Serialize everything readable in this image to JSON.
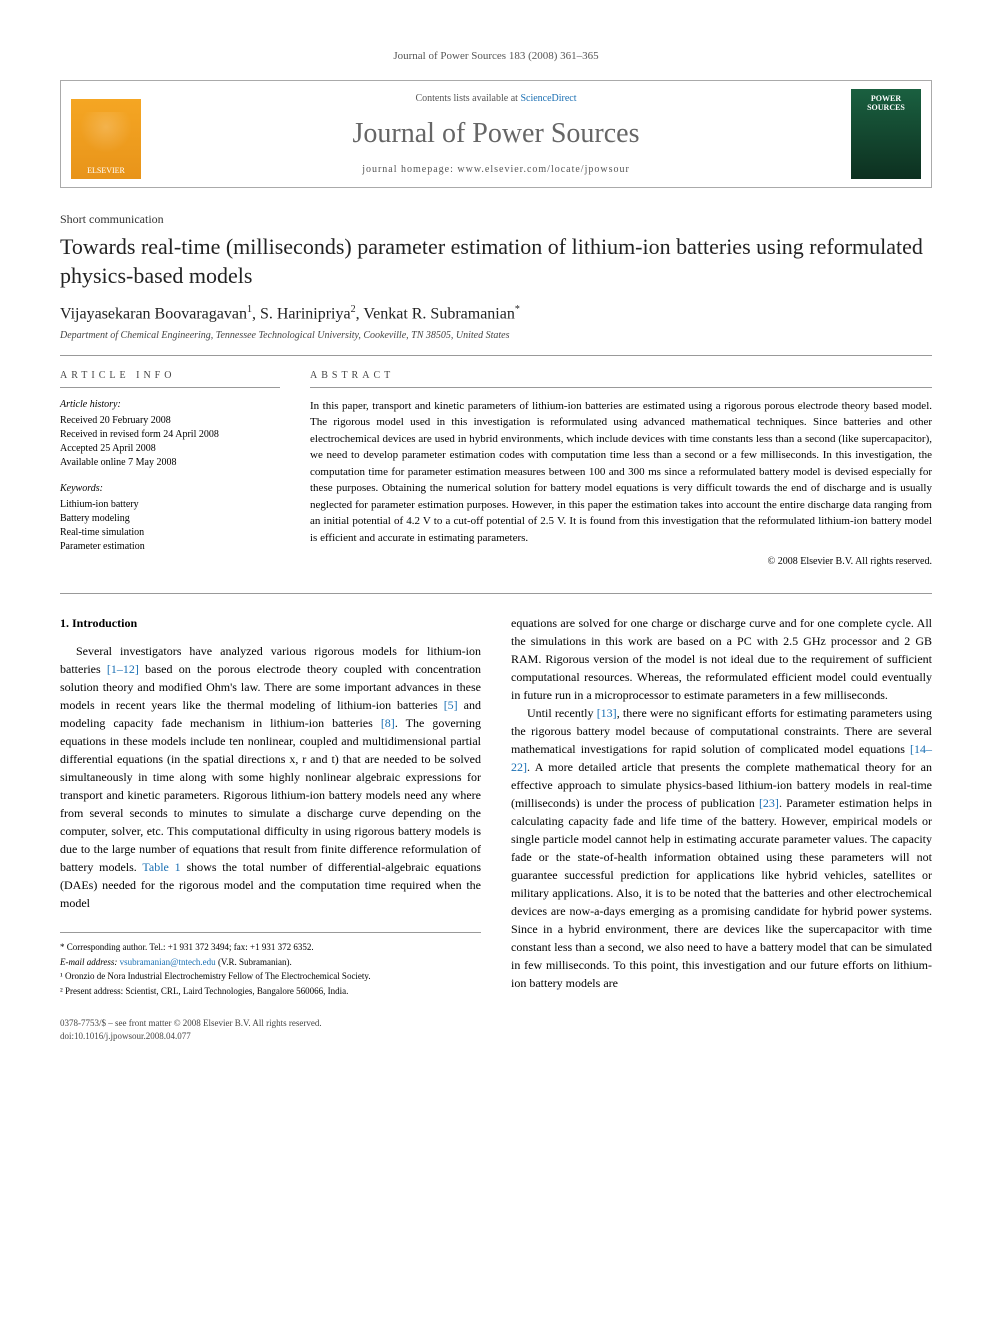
{
  "journal_ref": "Journal of Power Sources 183 (2008) 361–365",
  "header": {
    "contents_prefix": "Contents lists available at ",
    "contents_link": "ScienceDirect",
    "journal_name": "Journal of Power Sources",
    "homepage": "journal homepage: www.elsevier.com/locate/jpowsour",
    "publisher_logo": "ELSEVIER",
    "cover_text": "POWER SOURCES"
  },
  "article": {
    "type": "Short communication",
    "title": "Towards real-time (milliseconds) parameter estimation of lithium-ion batteries using reformulated physics-based models",
    "authors_html": "Vijayasekaran Boovaragavan¹, S. Harinipriya², Venkat R. Subramanian*",
    "author1": "Vijayasekaran Boovaragavan",
    "author1_sup": "1",
    "author2": "S. Harinipriya",
    "author2_sup": "2",
    "author3": "Venkat R. Subramanian",
    "author3_sup": "*",
    "affiliation": "Department of Chemical Engineering, Tennessee Technological University, Cookeville, TN 38505, United States"
  },
  "info": {
    "heading": "ARTICLE INFO",
    "history_label": "Article history:",
    "received": "Received 20 February 2008",
    "revised": "Received in revised form 24 April 2008",
    "accepted": "Accepted 25 April 2008",
    "online": "Available online 7 May 2008",
    "keywords_label": "Keywords:",
    "kw1": "Lithium-ion battery",
    "kw2": "Battery modeling",
    "kw3": "Real-time simulation",
    "kw4": "Parameter estimation"
  },
  "abstract": {
    "heading": "ABSTRACT",
    "text": "In this paper, transport and kinetic parameters of lithium-ion batteries are estimated using a rigorous porous electrode theory based model. The rigorous model used in this investigation is reformulated using advanced mathematical techniques. Since batteries and other electrochemical devices are used in hybrid environments, which include devices with time constants less than a second (like supercapacitor), we need to develop parameter estimation codes with computation time less than a second or a few milliseconds. In this investigation, the computation time for parameter estimation measures between 100 and 300 ms since a reformulated battery model is devised especially for these purposes. Obtaining the numerical solution for battery model equations is very difficult towards the end of discharge and is usually neglected for parameter estimation purposes. However, in this paper the estimation takes into account the entire discharge data ranging from an initial potential of 4.2 V to a cut-off potential of 2.5 V. It is found from this investigation that the reformulated lithium-ion battery model is efficient and accurate in estimating parameters.",
    "copyright": "© 2008 Elsevier B.V. All rights reserved."
  },
  "body": {
    "section_number": "1.",
    "section_title": "Introduction",
    "left_p1a": "Several investigators have analyzed various rigorous models for lithium-ion batteries ",
    "left_ref1": "[1–12]",
    "left_p1b": " based on the porous electrode theory coupled with concentration solution theory and modified Ohm's law. There are some important advances in these models in recent years like the thermal modeling of lithium-ion batteries ",
    "left_ref2": "[5]",
    "left_p1c": " and modeling capacity fade mechanism in lithium-ion batteries ",
    "left_ref3": "[8]",
    "left_p1d": ". The governing equations in these models include ten nonlinear, coupled and multidimensional partial differential equations (in the spatial directions x, r and t) that are needed to be solved simultaneously in time along with some highly nonlinear algebraic expressions for transport and kinetic parameters. Rigorous lithium-ion battery models need any where from several seconds to minutes to simulate a discharge curve depending on the computer, solver, etc. This computational difficulty in using rigorous battery models is due to the large number of equations that result from finite difference reformulation of battery models. ",
    "left_ref4": "Table 1",
    "left_p1e": " shows the total number of differential-algebraic equations (DAEs) needed for the rigorous model and the computation time required when the model",
    "right_p1": "equations are solved for one charge or discharge curve and for one complete cycle. All the simulations in this work are based on a PC with 2.5 GHz processor and 2 GB RAM. Rigorous version of the model is not ideal due to the requirement of sufficient computational resources. Whereas, the reformulated efficient model could eventually in future run in a microprocessor to estimate parameters in a few milliseconds.",
    "right_p2a": "Until recently ",
    "right_ref1": "[13]",
    "right_p2b": ", there were no significant efforts for estimating parameters using the rigorous battery model because of computational constraints. There are several mathematical investigations for rapid solution of complicated model equations ",
    "right_ref2": "[14–22]",
    "right_p2c": ". A more detailed article that presents the complete mathematical theory for an effective approach to simulate physics-based lithium-ion battery models in real-time (milliseconds) is under the process of publication ",
    "right_ref3": "[23]",
    "right_p2d": ". Parameter estimation helps in calculating capacity fade and life time of the battery. However, empirical models or single particle model cannot help in estimating accurate parameter values. The capacity fade or the state-of-health information obtained using these parameters will not guarantee successful prediction for applications like hybrid vehicles, satellites or military applications. Also, it is to be noted that the batteries and other electrochemical devices are now-a-days emerging as a promising candidate for hybrid power systems. Since in a hybrid environment, there are devices like the supercapacitor with time constant less than a second, we also need to have a battery model that can be simulated in few milliseconds. To this point, this investigation and our future efforts on lithium-ion battery models are"
  },
  "footnotes": {
    "corresponding": "* Corresponding author. Tel.: +1 931 372 3494; fax: +1 931 372 6352.",
    "email_label": "E-mail address: ",
    "email": "vsubramanian@tntech.edu",
    "email_suffix": " (V.R. Subramanian).",
    "fn1": "¹ Oronzio de Nora Industrial Electrochemistry Fellow of The Electrochemical Society.",
    "fn2": "² Present address: Scientist, CRL, Laird Technologies, Bangalore 560066, India."
  },
  "footer": {
    "issn": "0378-7753/$ – see front matter © 2008 Elsevier B.V. All rights reserved.",
    "doi": "doi:10.1016/j.jpowsour.2008.04.077"
  }
}
